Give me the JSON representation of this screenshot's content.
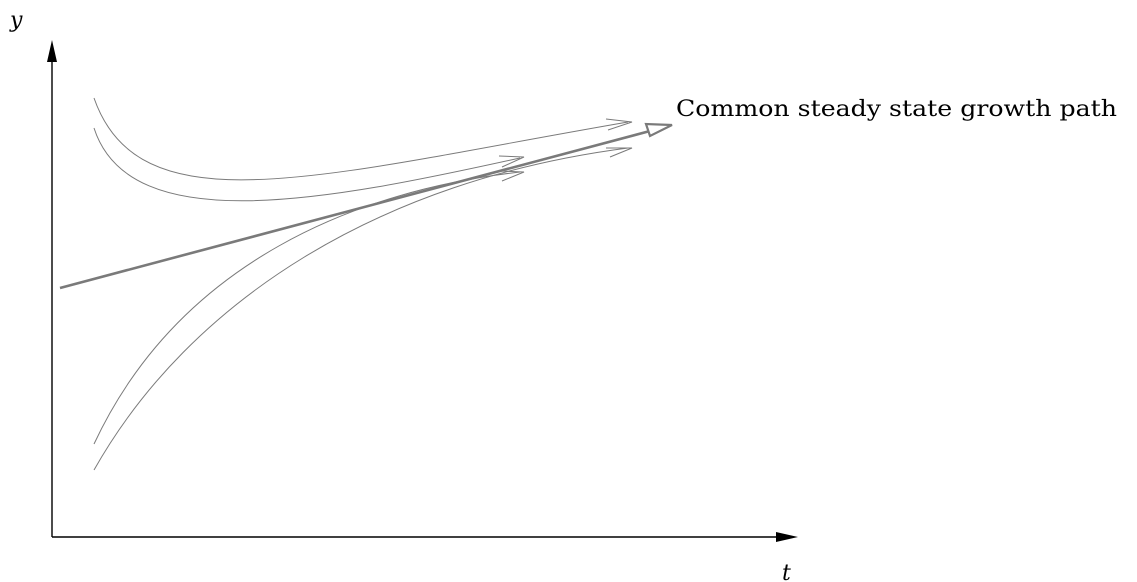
{
  "diagram": {
    "y_axis_label": "y",
    "x_axis_label": "t",
    "steady_state_label": "Common steady state growth path"
  }
}
